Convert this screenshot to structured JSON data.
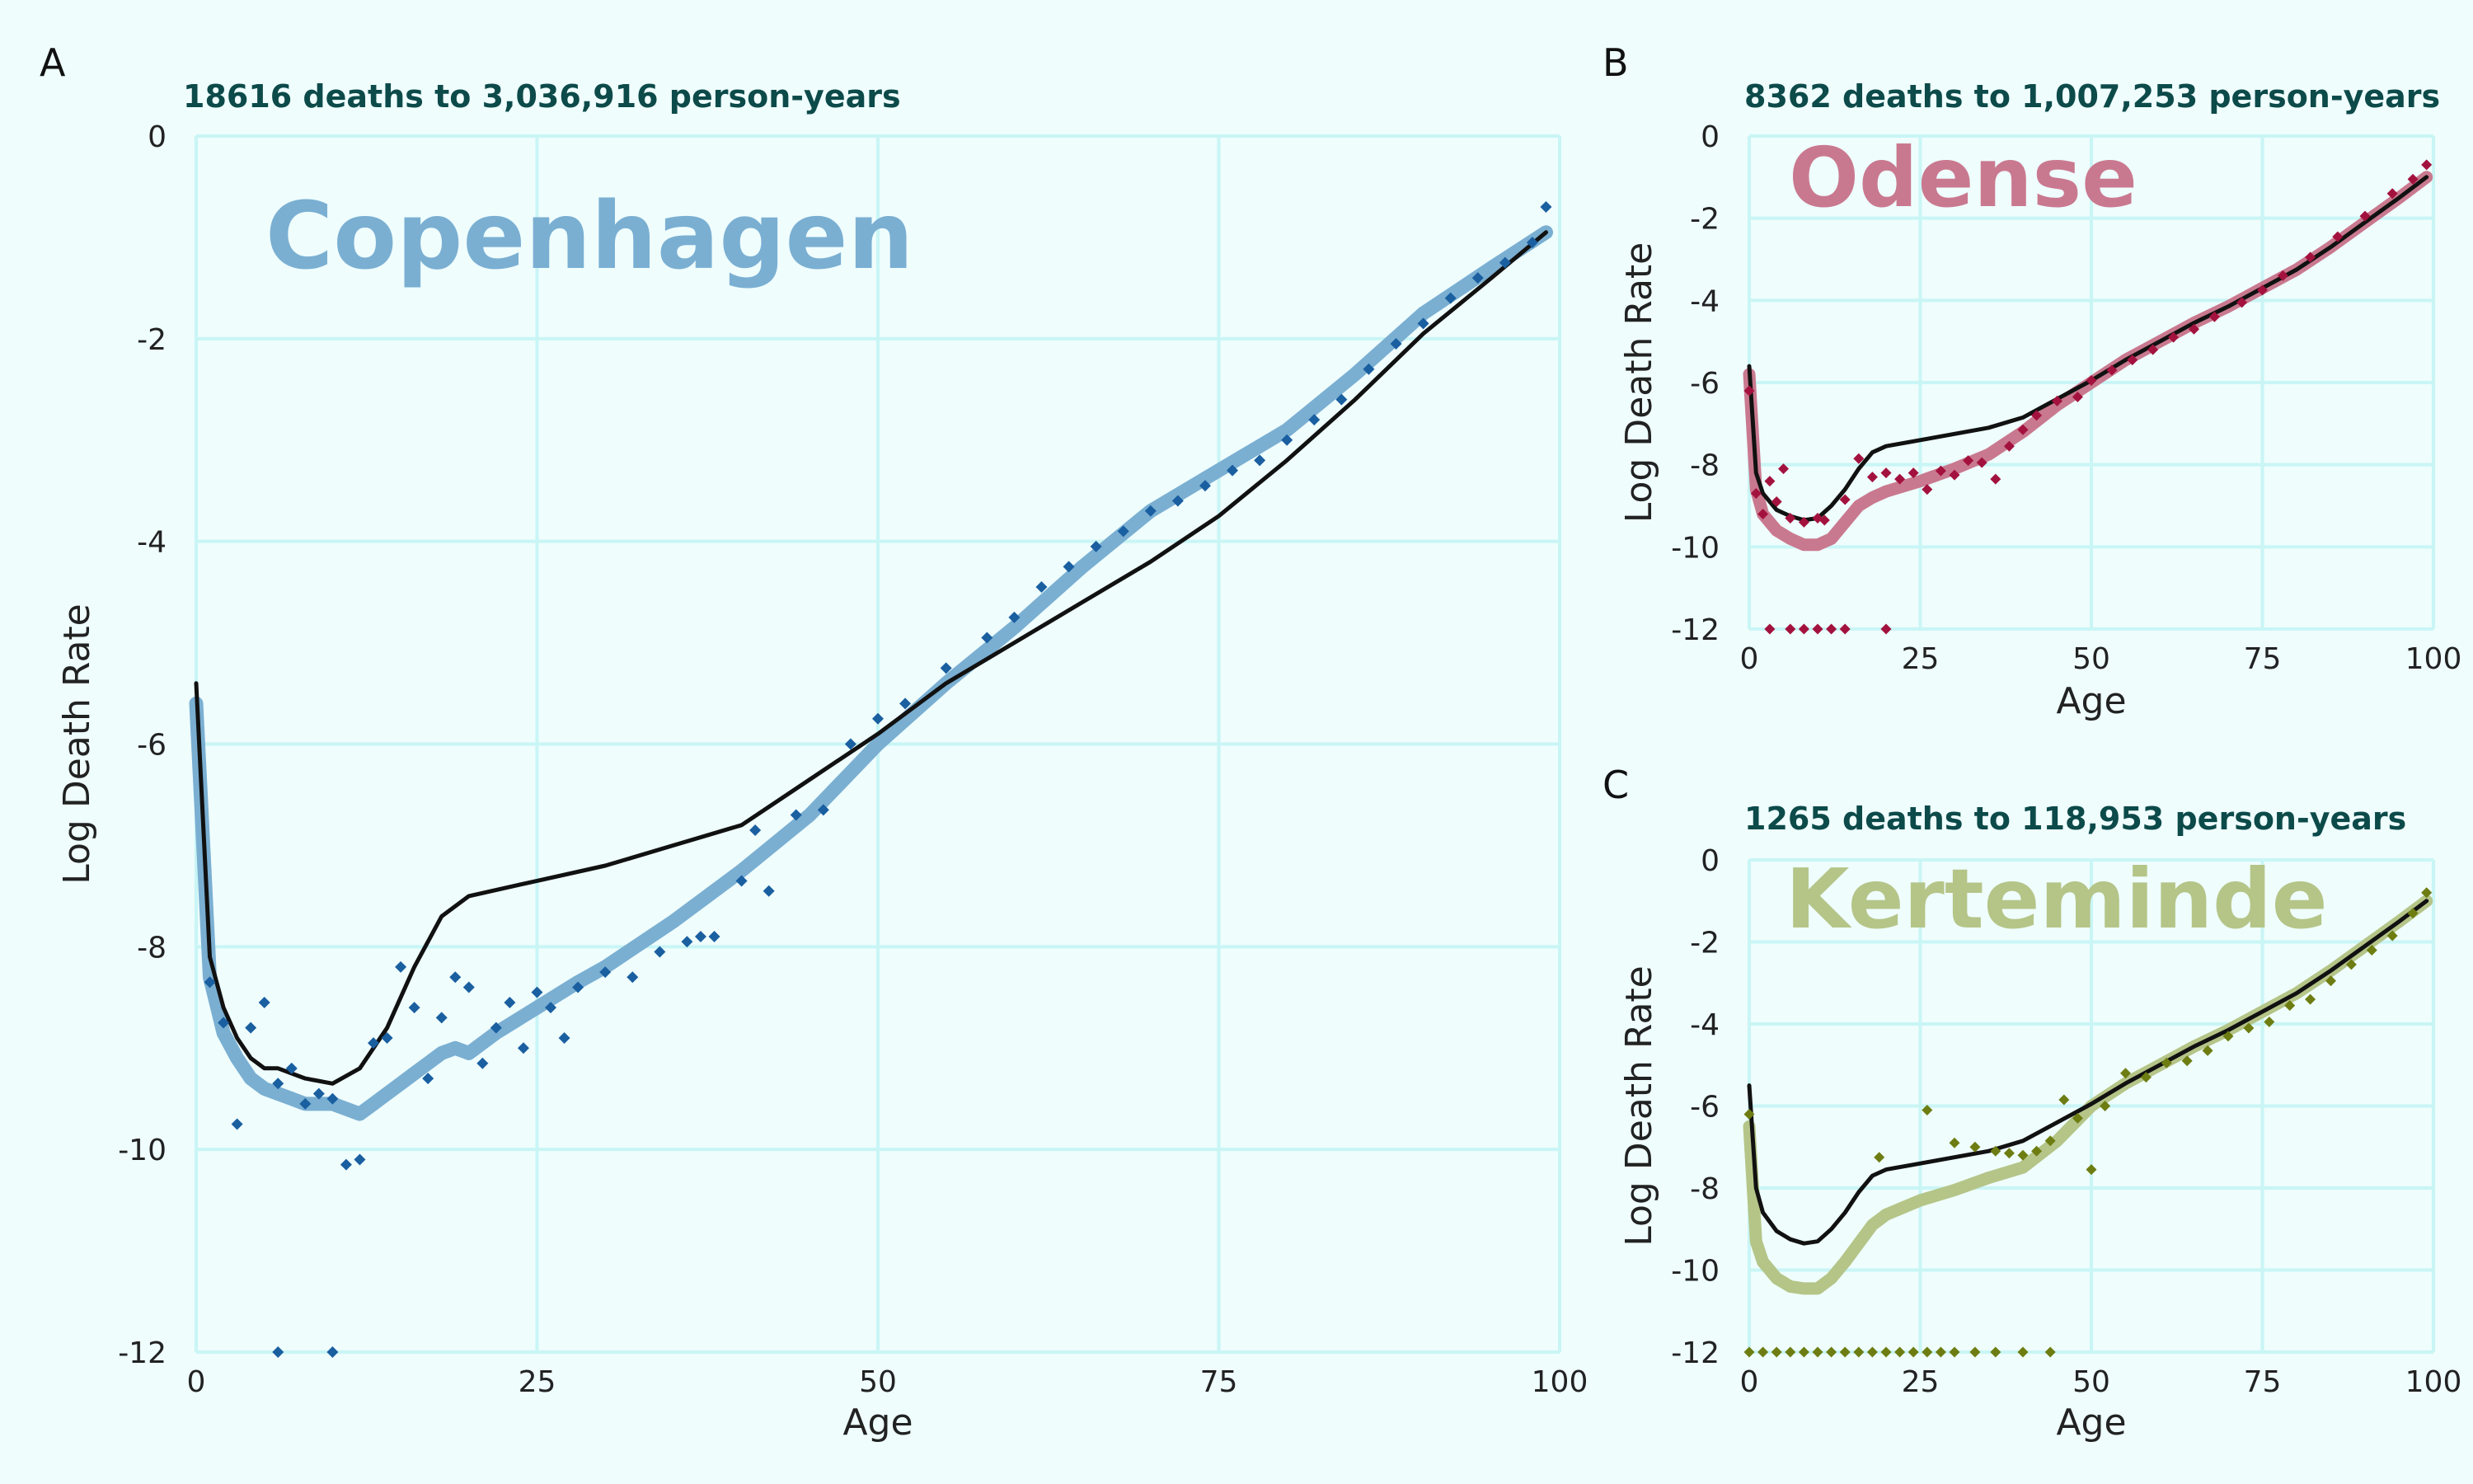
{
  "chart_data": [
    {
      "type": "line",
      "panel_label": "A",
      "subtitle": "18616 deaths to 3,036,916 person-years",
      "city": "Copenhagen",
      "xlabel": "Age",
      "ylabel": "Log Death Rate",
      "xlim": [
        0,
        100
      ],
      "ylim": [
        -12,
        0
      ],
      "x_ticks": [
        "0",
        "25",
        "50",
        "75",
        "100"
      ],
      "y_ticks": [
        "0",
        "-2",
        "-4",
        "-6",
        "-8",
        "-10",
        "-12"
      ],
      "grid": true,
      "colors": {
        "smooth": "#7aafd2",
        "points": "#1a5fa0",
        "reference": "#111111",
        "city_title": "#7aafd2"
      },
      "series": [
        {
          "role": "reference",
          "x": [
            0,
            1,
            2,
            3,
            4,
            5,
            6,
            8,
            10,
            12,
            14,
            16,
            18,
            20,
            25,
            30,
            35,
            40,
            45,
            50,
            55,
            60,
            65,
            70,
            75,
            80,
            85,
            90,
            95,
            99
          ],
          "values": [
            -5.4,
            -8.1,
            -8.6,
            -8.9,
            -9.1,
            -9.2,
            -9.2,
            -9.3,
            -9.35,
            -9.2,
            -8.8,
            -8.2,
            -7.7,
            -7.5,
            -7.35,
            -7.2,
            -7.0,
            -6.8,
            -6.35,
            -5.9,
            -5.4,
            -5.0,
            -4.6,
            -4.2,
            -3.75,
            -3.2,
            -2.6,
            -1.95,
            -1.4,
            -0.95
          ]
        },
        {
          "role": "smoothed",
          "x": [
            0,
            1,
            2,
            3,
            4,
            5,
            6,
            7,
            8,
            9,
            10,
            11,
            12,
            13,
            14,
            15,
            16,
            17,
            18,
            19,
            20,
            22,
            25,
            28,
            30,
            35,
            40,
            45,
            50,
            55,
            60,
            65,
            70,
            75,
            80,
            85,
            90,
            95,
            99
          ],
          "values": [
            -5.6,
            -8.3,
            -8.85,
            -9.1,
            -9.3,
            -9.4,
            -9.45,
            -9.5,
            -9.55,
            -9.55,
            -9.55,
            -9.6,
            -9.65,
            -9.55,
            -9.45,
            -9.35,
            -9.25,
            -9.15,
            -9.05,
            -9.0,
            -9.05,
            -8.85,
            -8.6,
            -8.35,
            -8.2,
            -7.75,
            -7.25,
            -6.7,
            -6.0,
            -5.4,
            -4.85,
            -4.25,
            -3.7,
            -3.3,
            -2.9,
            -2.35,
            -1.75,
            -1.3,
            -0.95
          ]
        },
        {
          "role": "observed",
          "x": [
            1,
            2,
            3,
            4,
            5,
            6,
            7,
            8,
            9,
            10,
            11,
            12,
            13,
            14,
            15,
            16,
            17,
            18,
            19,
            20,
            21,
            22,
            23,
            24,
            25,
            26,
            27,
            28,
            30,
            32,
            34,
            36,
            37,
            38,
            40,
            41,
            42,
            44,
            46,
            48,
            50,
            52,
            55,
            58,
            60,
            62,
            64,
            66,
            68,
            70,
            72,
            74,
            76,
            78,
            80,
            82,
            84,
            86,
            88,
            90,
            92,
            94,
            96,
            98,
            99,
            6,
            10
          ],
          "values": [
            -8.35,
            -8.75,
            -9.75,
            -8.8,
            -8.55,
            -9.35,
            -9.2,
            -9.55,
            -9.45,
            -9.5,
            -10.15,
            -10.1,
            -8.95,
            -8.9,
            -8.2,
            -8.6,
            -9.3,
            -8.7,
            -8.3,
            -8.4,
            -9.15,
            -8.8,
            -8.55,
            -9.0,
            -8.45,
            -8.6,
            -8.9,
            -8.4,
            -8.25,
            -8.3,
            -8.05,
            -7.95,
            -7.9,
            -7.9,
            -7.35,
            -6.85,
            -7.45,
            -6.7,
            -6.65,
            -6.0,
            -5.75,
            -5.6,
            -5.25,
            -4.95,
            -4.75,
            -4.45,
            -4.25,
            -4.05,
            -3.9,
            -3.7,
            -3.6,
            -3.45,
            -3.3,
            -3.2,
            -3.0,
            -2.8,
            -2.6,
            -2.3,
            -2.05,
            -1.85,
            -1.6,
            -1.4,
            -1.25,
            -1.05,
            -0.7,
            -12.0,
            -12.0
          ]
        }
      ]
    },
    {
      "type": "line",
      "panel_label": "B",
      "subtitle": "8362 deaths to 1,007,253 person-years",
      "city": "Odense",
      "xlabel": "Age",
      "ylabel": "Log Death Rate",
      "xlim": [
        0,
        100
      ],
      "ylim": [
        -12,
        0
      ],
      "x_ticks": [
        "0",
        "25",
        "50",
        "75",
        "100"
      ],
      "y_ticks": [
        "0",
        "-2",
        "-4",
        "-6",
        "-8",
        "-10",
        "-12"
      ],
      "grid": true,
      "colors": {
        "smooth": "#c9798f",
        "points": "#a3123e",
        "reference": "#111111",
        "city_title": "#c9798f"
      },
      "series": [
        {
          "role": "reference",
          "x": [
            0,
            1,
            2,
            4,
            6,
            8,
            10,
            12,
            14,
            16,
            18,
            20,
            25,
            30,
            35,
            40,
            45,
            50,
            55,
            60,
            65,
            70,
            75,
            80,
            85,
            90,
            95,
            99
          ],
          "values": [
            -5.6,
            -8.2,
            -8.7,
            -9.1,
            -9.25,
            -9.35,
            -9.3,
            -9.0,
            -8.6,
            -8.1,
            -7.7,
            -7.55,
            -7.4,
            -7.25,
            -7.1,
            -6.85,
            -6.4,
            -5.95,
            -5.45,
            -5.0,
            -4.55,
            -4.15,
            -3.7,
            -3.25,
            -2.7,
            -2.1,
            -1.5,
            -1.0
          ]
        },
        {
          "role": "smoothed",
          "x": [
            0,
            1,
            2,
            4,
            6,
            8,
            10,
            12,
            14,
            16,
            18,
            20,
            25,
            30,
            35,
            40,
            45,
            50,
            55,
            60,
            65,
            70,
            75,
            80,
            85,
            90,
            95,
            99
          ],
          "values": [
            -5.8,
            -8.6,
            -9.2,
            -9.6,
            -9.8,
            -9.95,
            -9.95,
            -9.8,
            -9.4,
            -9.0,
            -8.8,
            -8.65,
            -8.4,
            -8.1,
            -7.75,
            -7.2,
            -6.55,
            -6.0,
            -5.45,
            -5.0,
            -4.55,
            -4.15,
            -3.7,
            -3.25,
            -2.7,
            -2.1,
            -1.5,
            -1.0
          ]
        },
        {
          "role": "observed",
          "x": [
            0,
            1,
            2,
            3,
            4,
            5,
            6,
            8,
            10,
            11,
            14,
            16,
            18,
            20,
            22,
            24,
            26,
            28,
            30,
            32,
            34,
            36,
            38,
            40,
            42,
            45,
            48,
            50,
            53,
            56,
            59,
            62,
            65,
            68,
            72,
            75,
            78,
            82,
            86,
            90,
            94,
            97,
            99,
            3,
            6,
            8,
            10,
            12,
            14,
            20
          ],
          "values": [
            -6.2,
            -8.7,
            -9.2,
            -8.4,
            -8.9,
            -8.1,
            -9.3,
            -9.4,
            -9.3,
            -9.35,
            -8.85,
            -7.85,
            -8.3,
            -8.2,
            -8.35,
            -8.2,
            -8.6,
            -8.15,
            -8.25,
            -7.9,
            -7.95,
            -8.35,
            -7.55,
            -7.15,
            -6.8,
            -6.45,
            -6.35,
            -5.95,
            -5.7,
            -5.45,
            -5.2,
            -4.9,
            -4.7,
            -4.4,
            -4.05,
            -3.75,
            -3.4,
            -2.95,
            -2.45,
            -1.95,
            -1.4,
            -1.05,
            -0.7,
            -12.0,
            -12.0,
            -12.0,
            -12.0,
            -12.0,
            -12.0,
            -12.0
          ]
        }
      ]
    },
    {
      "type": "line",
      "panel_label": "C",
      "subtitle": "1265 deaths to 118,953 person-years",
      "city": "Kerteminde",
      "xlabel": "Age",
      "ylabel": "Log Death Rate",
      "xlim": [
        0,
        100
      ],
      "ylim": [
        -12,
        0
      ],
      "x_ticks": [
        "0",
        "25",
        "50",
        "75",
        "100"
      ],
      "y_ticks": [
        "0",
        "-2",
        "-4",
        "-6",
        "-8",
        "-10",
        "-12"
      ],
      "grid": true,
      "colors": {
        "smooth": "#b5c588",
        "points": "#6e7d12",
        "reference": "#111111",
        "city_title": "#b5c588"
      },
      "series": [
        {
          "role": "reference",
          "x": [
            0,
            1,
            2,
            4,
            6,
            8,
            10,
            12,
            14,
            16,
            18,
            20,
            25,
            30,
            35,
            40,
            45,
            50,
            55,
            60,
            65,
            70,
            75,
            80,
            85,
            90,
            95,
            99
          ],
          "values": [
            -5.5,
            -8.0,
            -8.6,
            -9.05,
            -9.25,
            -9.35,
            -9.3,
            -9.0,
            -8.6,
            -8.1,
            -7.7,
            -7.55,
            -7.4,
            -7.25,
            -7.1,
            -6.85,
            -6.4,
            -5.95,
            -5.45,
            -5.0,
            -4.55,
            -4.15,
            -3.7,
            -3.25,
            -2.7,
            -2.1,
            -1.5,
            -1.0
          ]
        },
        {
          "role": "smoothed",
          "x": [
            0,
            1,
            2,
            4,
            6,
            8,
            10,
            12,
            14,
            16,
            18,
            20,
            25,
            30,
            35,
            40,
            45,
            50,
            55,
            60,
            65,
            70,
            75,
            80,
            85,
            90,
            95,
            99
          ],
          "values": [
            -6.5,
            -9.3,
            -9.8,
            -10.2,
            -10.4,
            -10.45,
            -10.45,
            -10.2,
            -9.8,
            -9.35,
            -8.9,
            -8.65,
            -8.3,
            -8.05,
            -7.75,
            -7.5,
            -6.85,
            -6.0,
            -5.45,
            -5.0,
            -4.55,
            -4.15,
            -3.7,
            -3.25,
            -2.7,
            -2.1,
            -1.5,
            -1.0
          ]
        },
        {
          "role": "observed",
          "x": [
            0,
            19,
            26,
            30,
            33,
            36,
            38,
            40,
            42,
            44,
            46,
            48,
            50,
            52,
            55,
            58,
            61,
            64,
            67,
            70,
            73,
            76,
            79,
            82,
            85,
            88,
            91,
            94,
            97,
            99,
            0,
            2,
            4,
            6,
            8,
            10,
            12,
            14,
            16,
            18,
            20,
            22,
            24,
            26,
            28,
            30,
            33,
            36,
            40,
            44
          ],
          "values": [
            -6.2,
            -7.25,
            -6.1,
            -6.9,
            -7.0,
            -7.1,
            -7.15,
            -7.2,
            -7.1,
            -6.85,
            -5.85,
            -6.3,
            -7.55,
            -6.0,
            -5.2,
            -5.3,
            -4.95,
            -4.9,
            -4.65,
            -4.3,
            -4.1,
            -3.95,
            -3.55,
            -3.4,
            -2.95,
            -2.55,
            -2.2,
            -1.85,
            -1.3,
            -0.8,
            -12.0,
            -12.0,
            -12.0,
            -12.0,
            -12.0,
            -12.0,
            -12.0,
            -12.0,
            -12.0,
            -12.0,
            -12.0,
            -12.0,
            -12.0,
            -12.0,
            -12.0,
            -12.0,
            -12.0,
            -12.0,
            -12.0,
            -12.0
          ]
        }
      ]
    }
  ]
}
